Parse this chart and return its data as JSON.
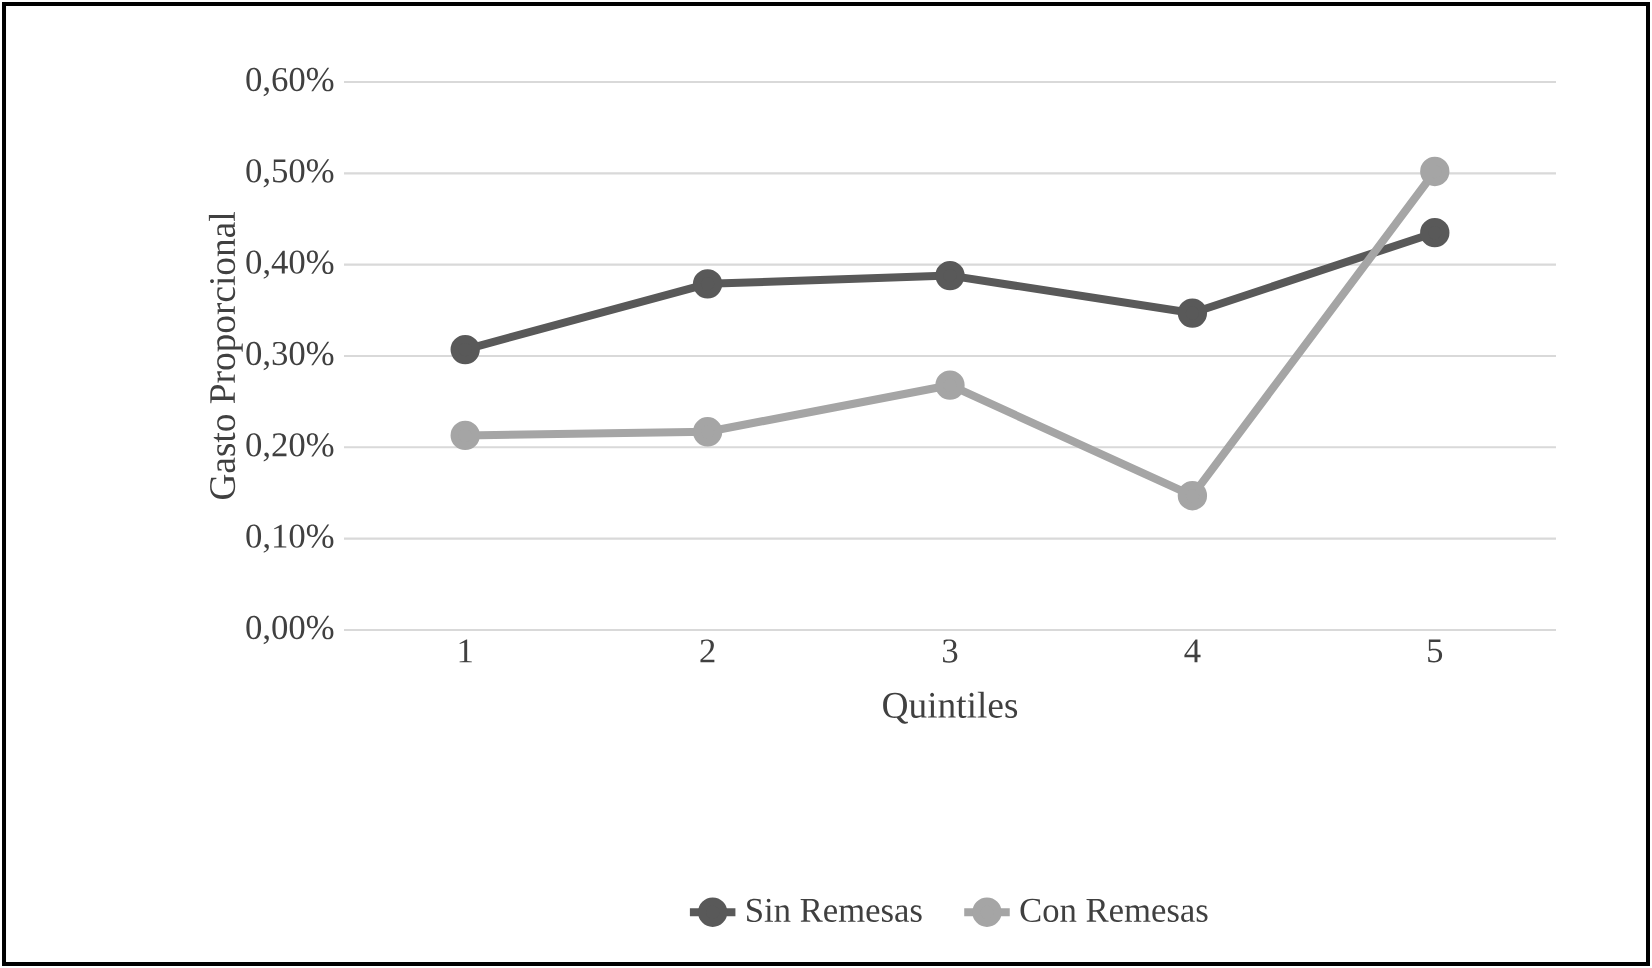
{
  "chart_data": {
    "type": "line",
    "xlabel": "Quintiles",
    "ylabel": "Gasto Proporcional",
    "categories": [
      "1",
      "2",
      "3",
      "4",
      "5"
    ],
    "series": [
      {
        "name": "Sin Remesas",
        "color": "#595959",
        "values": [
          0.307,
          0.379,
          0.388,
          0.347,
          0.435
        ]
      },
      {
        "name": "Con Remesas",
        "color": "#a5a5a5",
        "values": [
          0.213,
          0.217,
          0.268,
          0.147,
          0.502
        ]
      }
    ],
    "ylim": [
      0,
      0.6
    ],
    "yticks": [
      {
        "value": 0,
        "label": "0,00%"
      },
      {
        "value": 0.1,
        "label": "0,10%"
      },
      {
        "value": 0.2,
        "label": "0,20%"
      },
      {
        "value": 0.3,
        "label": "0,30%"
      },
      {
        "value": 0.4,
        "label": "0,40%"
      },
      {
        "value": 0.5,
        "label": "0,50%"
      },
      {
        "value": 0.6,
        "label": "0,60%"
      }
    ],
    "grid": "y",
    "legend": "bottom",
    "marker": "circle",
    "line_style": "solid"
  }
}
